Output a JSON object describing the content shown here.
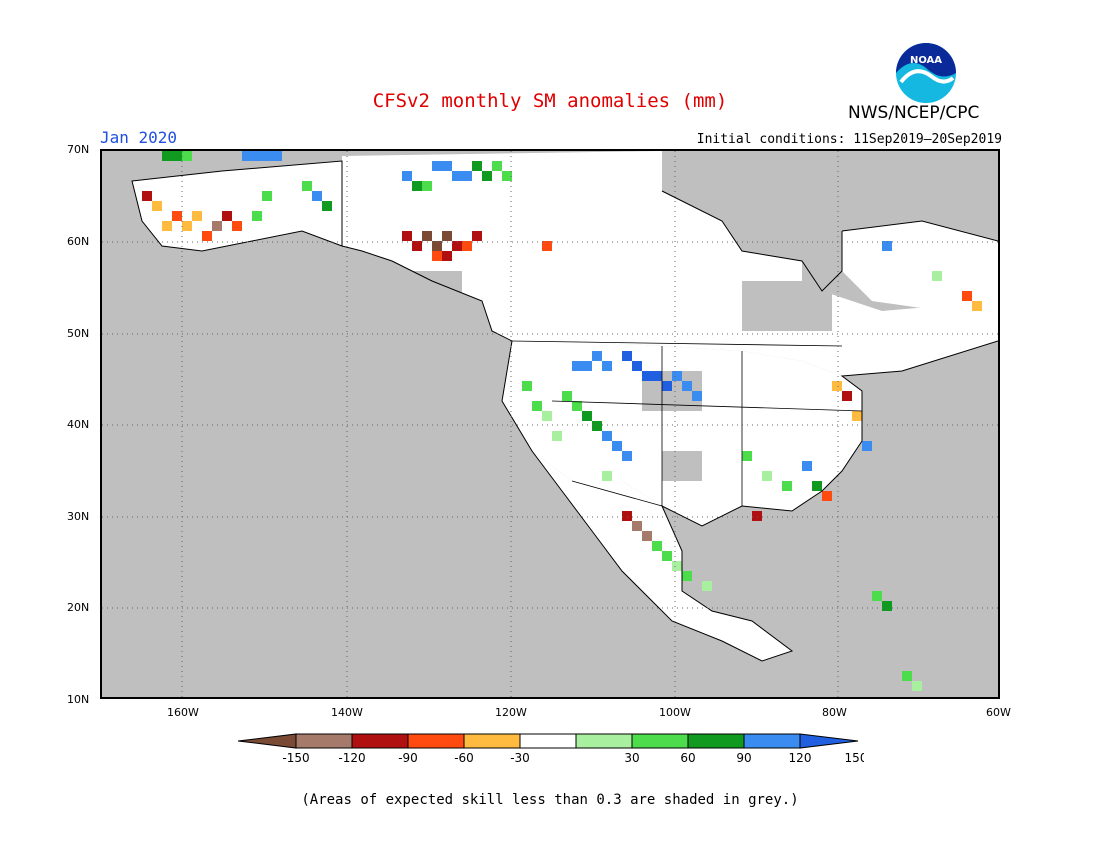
{
  "title": "CFSv2 monthly SM anomalies (mm)",
  "month_label": "Jan 2020",
  "initial_conditions": "Initial conditions: 11Sep2019–20Sep2019",
  "agency": "NWS/NCEP/CPC",
  "logo_text": "NOAA",
  "lat_labels": [
    "70N",
    "60N",
    "50N",
    "40N",
    "30N",
    "20N",
    "10N"
  ],
  "lon_labels": [
    "160W",
    "140W",
    "120W",
    "100W",
    "80W",
    "60W"
  ],
  "colorbar": {
    "labels": [
      "-150",
      "-120",
      "-90",
      "-60",
      "-30",
      "30",
      "60",
      "90",
      "120",
      "150"
    ],
    "colors": [
      "#7b4a35",
      "#a67a6b",
      "#b01010",
      "#ff4a10",
      "#ffba40",
      "#ffffff",
      "#a8f0a0",
      "#4cdc4c",
      "#109a20",
      "#3a8cf0",
      "#2060e0"
    ]
  },
  "footer": "(Areas of expected skill less than 0.3 are shaded in grey.)"
}
